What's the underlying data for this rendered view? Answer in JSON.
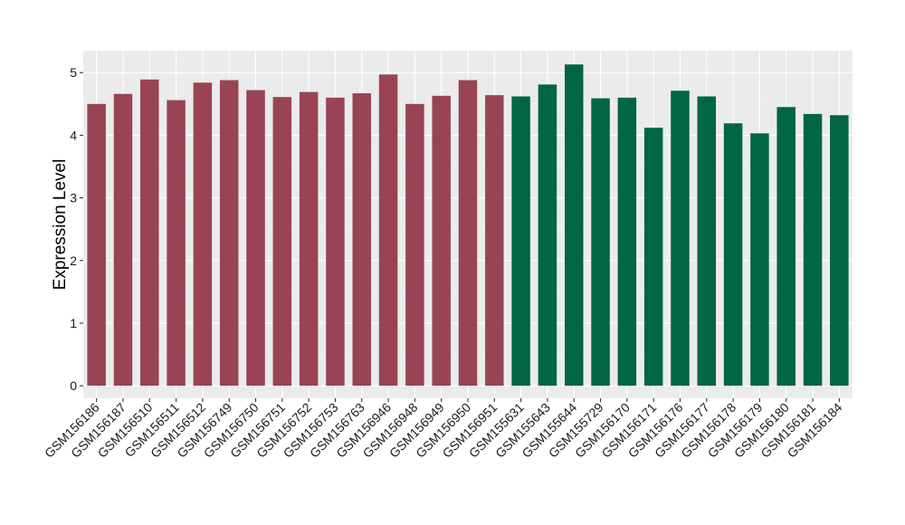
{
  "chart_data": {
    "type": "bar",
    "title": "",
    "xlabel": "",
    "ylabel": "Expression Level",
    "ylim": [
      -0.2,
      5.35
    ],
    "yticks": [
      0,
      1,
      2,
      3,
      4,
      5
    ],
    "grid": true,
    "panel_background": "#ebebeb",
    "categories": [
      "GSM156186",
      "GSM156187",
      "GSM156510",
      "GSM156511",
      "GSM156512",
      "GSM156749",
      "GSM156750",
      "GSM156751",
      "GSM156752",
      "GSM156753",
      "GSM156763",
      "GSM156946",
      "GSM156948",
      "GSM156949",
      "GSM156950",
      "GSM156951",
      "GSM155631",
      "GSM155643",
      "GSM155644",
      "GSM155729",
      "GSM156170",
      "GSM156171",
      "GSM156176",
      "GSM156177",
      "GSM156178",
      "GSM156179",
      "GSM156180",
      "GSM156181",
      "GSM156184"
    ],
    "values": [
      4.5,
      4.66,
      4.89,
      4.56,
      4.84,
      4.88,
      4.72,
      4.61,
      4.69,
      4.6,
      4.67,
      4.97,
      4.5,
      4.63,
      4.88,
      4.64,
      4.62,
      4.81,
      5.13,
      4.59,
      4.6,
      4.12,
      4.71,
      4.62,
      4.19,
      4.03,
      4.45,
      4.34,
      4.32
    ],
    "bar_colors": [
      "#994455",
      "#994455",
      "#994455",
      "#994455",
      "#994455",
      "#994455",
      "#994455",
      "#994455",
      "#994455",
      "#994455",
      "#994455",
      "#994455",
      "#994455",
      "#994455",
      "#994455",
      "#994455",
      "#006644",
      "#006644",
      "#006644",
      "#006644",
      "#006644",
      "#006644",
      "#006644",
      "#006644",
      "#006644",
      "#006644",
      "#006644",
      "#006644",
      "#006644"
    ]
  }
}
